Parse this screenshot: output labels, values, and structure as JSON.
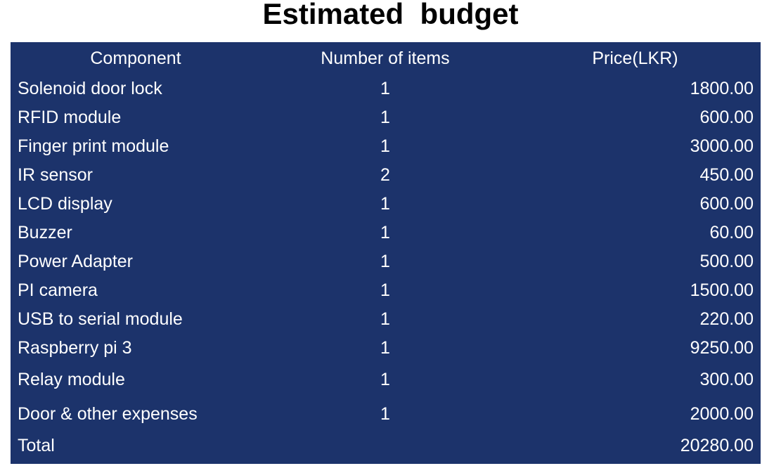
{
  "title": "Estimated  budget",
  "colors": {
    "table_background": "#1c336b",
    "table_text": "#ffffff",
    "title_text": "#000000"
  },
  "table": {
    "headers": [
      "Component",
      "Number of items",
      "Price(LKR)"
    ],
    "rows": [
      {
        "component": "Solenoid door lock",
        "qty": "1",
        "price": "1800.00"
      },
      {
        "component": "RFID module",
        "qty": "1",
        "price": "600.00"
      },
      {
        "component": "Finger print module",
        "qty": "1",
        "price": "3000.00"
      },
      {
        "component": "IR sensor",
        "qty": "2",
        "price": "450.00"
      },
      {
        "component": "LCD display",
        "qty": "1",
        "price": "600.00"
      },
      {
        "component": "Buzzer",
        "qty": "1",
        "price": "60.00"
      },
      {
        "component": "Power Adapter",
        "qty": "1",
        "price": "500.00"
      },
      {
        "component": "PI camera",
        "qty": "1",
        "price": "1500.00"
      },
      {
        "component": "USB to serial module",
        "qty": "1",
        "price": "220.00"
      },
      {
        "component": "Raspberry pi 3",
        "qty": "1",
        "price": "9250.00"
      },
      {
        "component": "Relay module",
        "qty": "1",
        "price": "300.00"
      },
      {
        "component": "Door & other expenses",
        "qty": "1",
        "price": "2000.00"
      }
    ],
    "total": {
      "label": "Total",
      "qty": "",
      "price": "20280.00"
    }
  }
}
